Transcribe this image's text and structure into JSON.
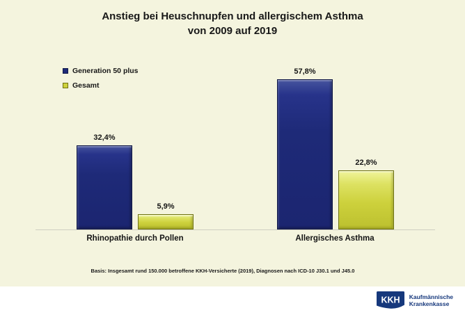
{
  "title": {
    "line1": "Anstieg bei Heuschnupfen und allergischem Asthma",
    "line2": "von 2009 auf 2019"
  },
  "legend": {
    "position": "top-left",
    "items": [
      {
        "label": "Generation 50 plus",
        "color": "#1e2a78"
      },
      {
        "label": "Gesamt",
        "color": "#cdd13c"
      }
    ]
  },
  "chart_data": {
    "type": "bar",
    "title": "Anstieg bei Heuschnupfen und allergischem Asthma von 2009 auf 2019",
    "categories": [
      "Rhinopathie durch Pollen",
      "Allergisches Asthma"
    ],
    "series": [
      {
        "name": "Generation 50 plus",
        "color": "#1e2a78",
        "values": [
          32.4,
          57.8
        ],
        "labels": [
          "32,4%",
          "57,8%"
        ]
      },
      {
        "name": "Gesamt",
        "color": "#cdd13c",
        "values": [
          5.9,
          22.8
        ],
        "labels": [
          "5,9%",
          "22,8%"
        ]
      }
    ],
    "xlabel": "",
    "ylabel": "",
    "ylim": [
      0,
      60
    ],
    "grid": false,
    "value_suffix": "%",
    "legend_position": "top-left"
  },
  "footnote": "Basis: Insgesamt rund 150.000 betroffene KKH-Versicherte (2019), Diagnosen nach ICD-10 J30.1 und J45.0",
  "logo": {
    "abbr": "KKH",
    "name_line1": "Kaufmännische",
    "name_line2": "Krankenkasse",
    "color": "#16387c"
  },
  "colors": {
    "background": "#f4f4de",
    "strip_background": "#ffffff",
    "bar_blue": "#1e2a78",
    "bar_yellow": "#cdd13c",
    "axis_line": "#cfcfc2",
    "text": "#181818"
  }
}
